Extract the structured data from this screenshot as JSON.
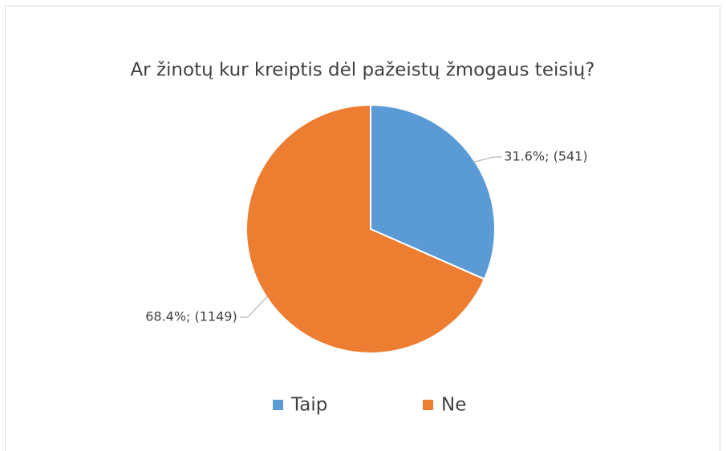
{
  "chart_data": {
    "type": "pie",
    "title": "Ar žinotų kur kreiptis dėl pažeistų žmogaus teisių?",
    "categories": [
      "Taip",
      "Ne"
    ],
    "values": [
      31.6,
      68.4
    ],
    "value_labels": [
      "31.6%; (541)",
      "68.4%; (1149)"
    ],
    "colors": [
      "#5b9bd5",
      "#ed7d31"
    ],
    "legend": "bottom"
  }
}
